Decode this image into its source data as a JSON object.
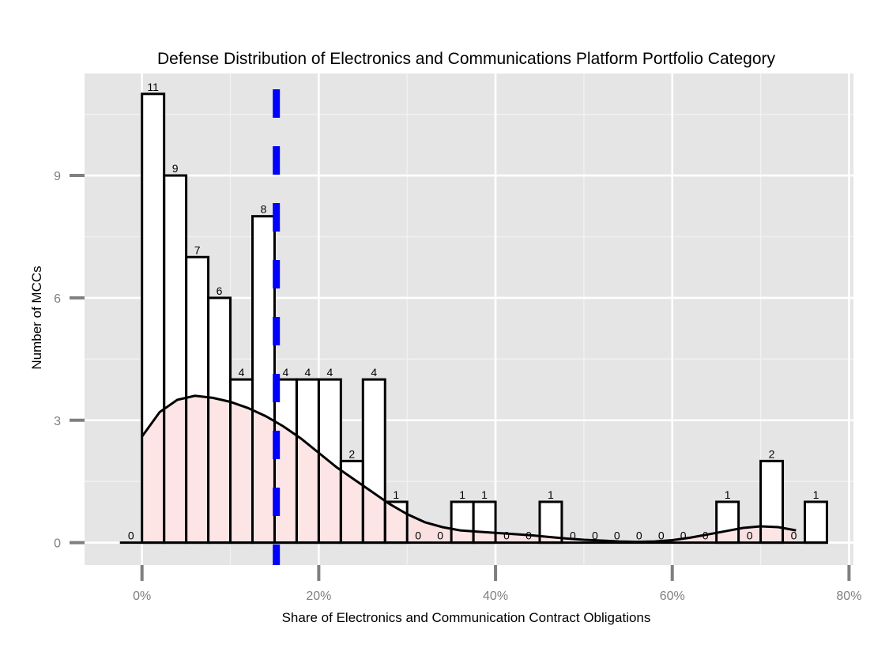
{
  "chart_data": {
    "type": "bar",
    "title": "Defense Distribution of Electronics and Communications Platform Portfolio Category",
    "xlabel": "Share of Electronics and Communication Contract Obligations",
    "ylabel": "Number of MCCs",
    "bin_width": 2.5,
    "bins": [
      {
        "start": -2.5,
        "count": 0
      },
      {
        "start": 0,
        "count": 11
      },
      {
        "start": 2.5,
        "count": 9
      },
      {
        "start": 5,
        "count": 7
      },
      {
        "start": 7.5,
        "count": 6
      },
      {
        "start": 10,
        "count": 4
      },
      {
        "start": 12.5,
        "count": 8
      },
      {
        "start": 15,
        "count": 4
      },
      {
        "start": 17.5,
        "count": 4
      },
      {
        "start": 20,
        "count": 4
      },
      {
        "start": 22.5,
        "count": 2
      },
      {
        "start": 25,
        "count": 4
      },
      {
        "start": 27.5,
        "count": 1
      },
      {
        "start": 30,
        "count": 0
      },
      {
        "start": 32.5,
        "count": 0
      },
      {
        "start": 35,
        "count": 1
      },
      {
        "start": 37.5,
        "count": 1
      },
      {
        "start": 40,
        "count": 0
      },
      {
        "start": 42.5,
        "count": 0
      },
      {
        "start": 45,
        "count": 1
      },
      {
        "start": 47.5,
        "count": 0
      },
      {
        "start": 50,
        "count": 0
      },
      {
        "start": 52.5,
        "count": 0
      },
      {
        "start": 55,
        "count": 0
      },
      {
        "start": 57.5,
        "count": 0
      },
      {
        "start": 60,
        "count": 0
      },
      {
        "start": 62.5,
        "count": 0
      },
      {
        "start": 65,
        "count": 1
      },
      {
        "start": 67.5,
        "count": 0
      },
      {
        "start": 70,
        "count": 2
      },
      {
        "start": 72.5,
        "count": 0
      },
      {
        "start": 75,
        "count": 1
      }
    ],
    "density_curve": {
      "x": [
        0,
        2,
        4,
        6,
        8,
        10,
        12,
        14,
        16,
        18,
        20,
        22,
        24,
        26,
        28,
        30,
        32,
        34,
        36,
        38,
        40,
        42,
        44,
        46,
        48,
        50,
        52,
        54,
        56,
        58,
        60,
        62,
        64,
        66,
        68,
        70,
        72,
        74
      ],
      "y": [
        2.6,
        3.2,
        3.5,
        3.6,
        3.55,
        3.45,
        3.3,
        3.1,
        2.85,
        2.55,
        2.2,
        1.85,
        1.55,
        1.25,
        0.95,
        0.7,
        0.5,
        0.38,
        0.3,
        0.27,
        0.24,
        0.21,
        0.18,
        0.14,
        0.1,
        0.07,
        0.05,
        0.03,
        0.02,
        0.03,
        0.06,
        0.12,
        0.2,
        0.28,
        0.36,
        0.4,
        0.38,
        0.3
      ],
      "fill": "#fde0e0"
    },
    "reference_line": {
      "x": 15.2,
      "style": "dashed",
      "color": "#0000ff"
    },
    "xlim": [
      -6.5,
      80.5
    ],
    "ylim": [
      -0.55,
      11.5
    ],
    "x_ticks": [
      0,
      20,
      40,
      60,
      80
    ],
    "x_tick_labels": [
      "0%",
      "20%",
      "40%",
      "60%",
      "80%"
    ],
    "y_ticks": [
      0,
      3,
      6,
      9
    ],
    "y_tick_labels": [
      "0",
      "3",
      "6",
      "9"
    ],
    "grid": true,
    "panel_background": "#e5e5e5",
    "bar_fill": "#ffffff",
    "bar_outline": "#000000"
  }
}
